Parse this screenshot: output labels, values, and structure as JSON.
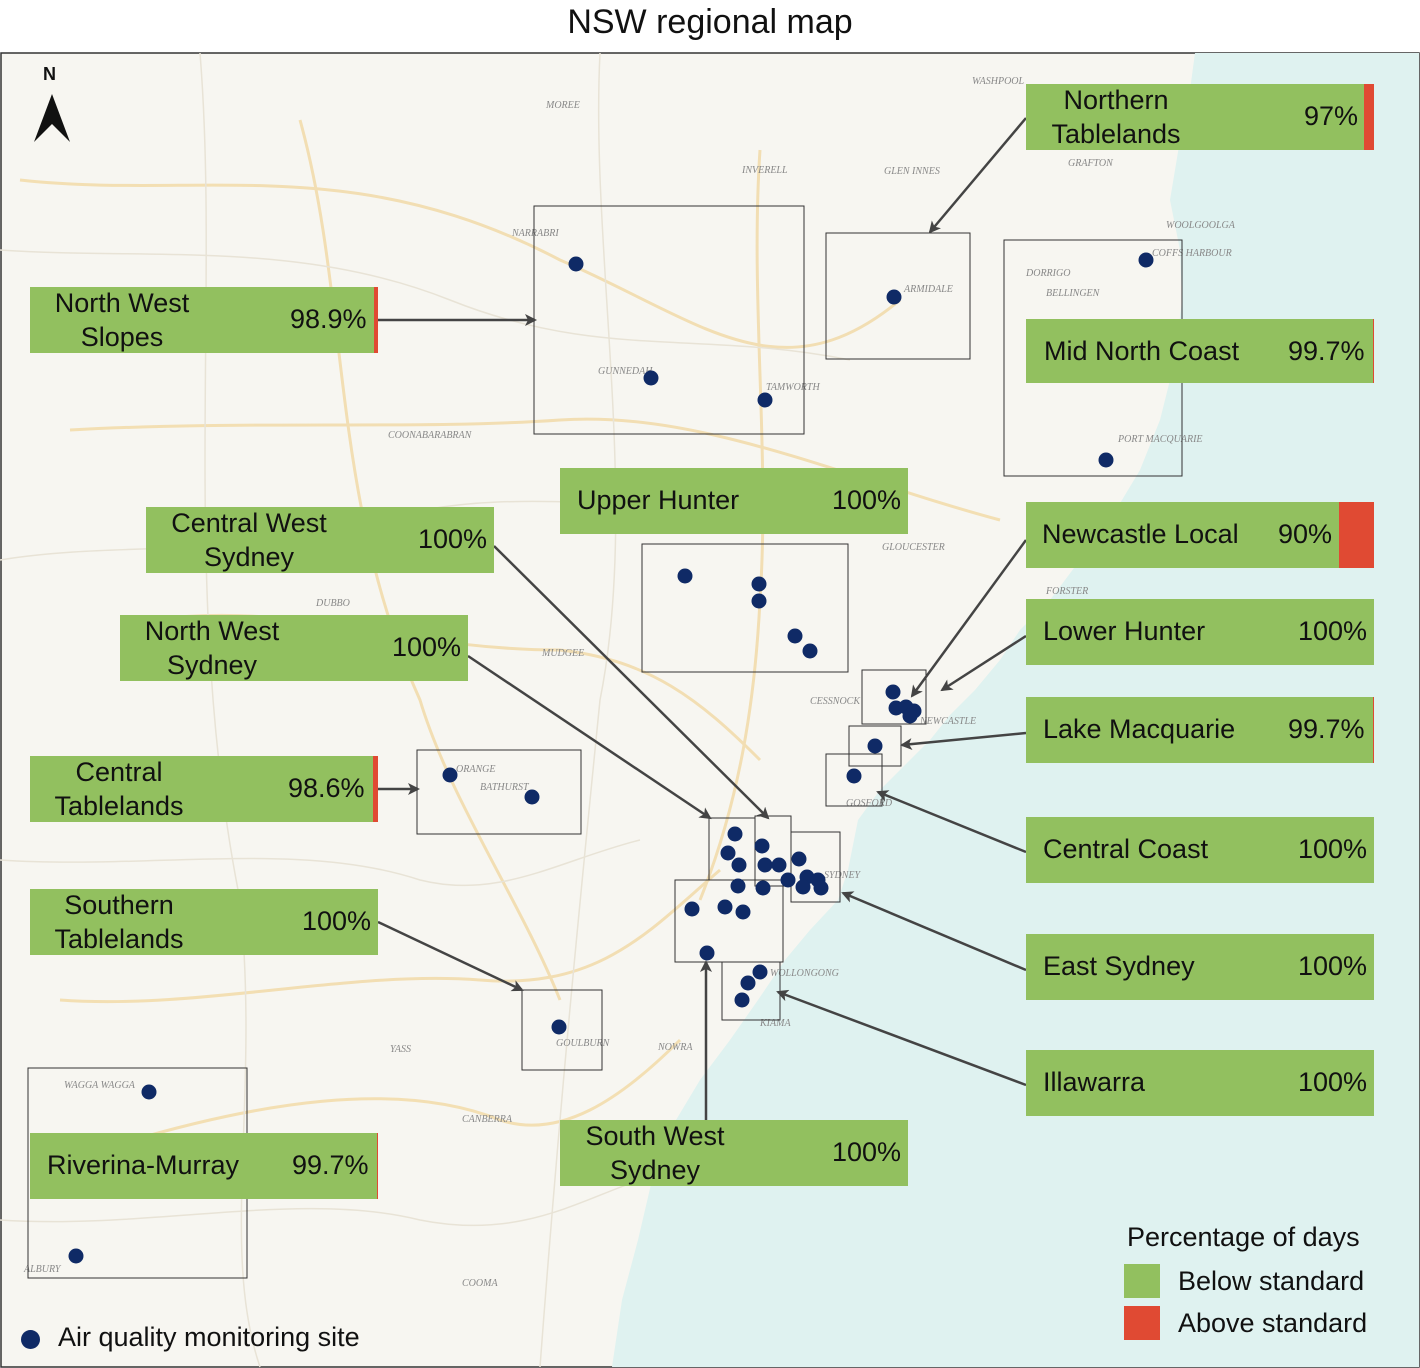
{
  "title": "NSW regional map",
  "compass": {
    "label": "N"
  },
  "colors": {
    "below": "#92c05f",
    "above": "#e04a33",
    "sea": "#dff2f0",
    "site": "#0f2a66",
    "land": "#f7f6f1"
  },
  "regions": [
    {
      "id": "northern-tablelands",
      "label": "Northern Tablelands",
      "value": "97%",
      "below_pct": 97
    },
    {
      "id": "north-west-slopes",
      "label": "North West Slopes",
      "value": "98.9%",
      "below_pct": 98.9
    },
    {
      "id": "mid-north-coast",
      "label": "Mid North Coast",
      "value": "99.7%",
      "below_pct": 99.7
    },
    {
      "id": "upper-hunter",
      "label": "Upper Hunter",
      "value": "100%",
      "below_pct": 100
    },
    {
      "id": "central-west-sydney",
      "label": "Central West Sydney",
      "value": "100%",
      "below_pct": 100
    },
    {
      "id": "newcastle-local",
      "label": "Newcastle Local",
      "value": "90%",
      "below_pct": 90
    },
    {
      "id": "north-west-sydney",
      "label": "North West Sydney",
      "value": "100%",
      "below_pct": 100
    },
    {
      "id": "lower-hunter",
      "label": "Lower Hunter",
      "value": "100%",
      "below_pct": 100
    },
    {
      "id": "lake-macquarie",
      "label": "Lake Macquarie",
      "value": "99.7%",
      "below_pct": 99.7
    },
    {
      "id": "central-tablelands",
      "label": "Central Tablelands",
      "value": "98.6%",
      "below_pct": 98.6
    },
    {
      "id": "central-coast",
      "label": "Central Coast",
      "value": "100%",
      "below_pct": 100
    },
    {
      "id": "southern-tablelands",
      "label": "Southern Tablelands",
      "value": "100%",
      "below_pct": 100
    },
    {
      "id": "east-sydney",
      "label": "East Sydney",
      "value": "100%",
      "below_pct": 100
    },
    {
      "id": "illawarra",
      "label": "Illawarra",
      "value": "100%",
      "below_pct": 100
    },
    {
      "id": "south-west-sydney",
      "label": "South West Sydney",
      "value": "100%",
      "below_pct": 100
    },
    {
      "id": "riverina-murray",
      "label": "Riverina-Murray",
      "value": "99.7%",
      "below_pct": 99.7
    }
  ],
  "places": [
    "WASHPOOL",
    "GRAFTON",
    "WOOLGOOLGA",
    "COFFS HARBOUR",
    "ARMIDALE",
    "NARRABRI",
    "TAMWORTH",
    "GUNNEDAH",
    "MOREE",
    "INVERELL",
    "GLEN INNES",
    "DORRIGO",
    "BELLINGEN",
    "PORT MACQUARIE",
    "GLOUCESTER",
    "FORSTER",
    "DUBBO",
    "MUDGEE",
    "ORANGE",
    "BATHURST",
    "NEWCASTLE",
    "CESSNOCK",
    "GOSFORD",
    "SYDNEY",
    "WOLLONGONG",
    "GOULBURN",
    "CANBERRA",
    "WAGGA WAGGA",
    "ALBURY",
    "NOWRA",
    "COONABARABRAN",
    "YASS",
    "COOMA",
    "KIAMA"
  ],
  "legend": {
    "title": "Percentage of days",
    "below": "Below standard",
    "above": "Above standard",
    "site": "Air quality monitoring site"
  }
}
